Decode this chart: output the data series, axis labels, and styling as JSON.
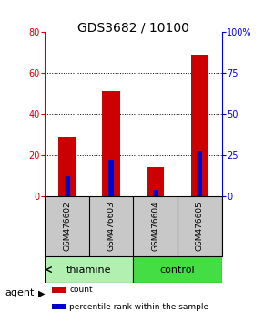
{
  "title": "GDS3682 / 10100",
  "samples": [
    "GSM476602",
    "GSM476603",
    "GSM476604",
    "GSM476605"
  ],
  "count_values": [
    29,
    51,
    14,
    69
  ],
  "percentile_values": [
    12,
    22,
    4,
    27
  ],
  "ylim_left": [
    0,
    80
  ],
  "ylim_right": [
    0,
    100
  ],
  "yticks_left": [
    0,
    20,
    40,
    60,
    80
  ],
  "yticks_right": [
    0,
    25,
    50,
    75,
    100
  ],
  "yticklabels_right": [
    "0",
    "25",
    "50",
    "75",
    "100%"
  ],
  "bar_color_red": "#cc0000",
  "bar_color_blue": "#0000cc",
  "bar_width": 0.4,
  "blue_bar_width": 0.12,
  "agent_label": "agent",
  "groups": [
    {
      "label": "thiamine",
      "samples": [
        0,
        1
      ],
      "color": "#b2f0b2"
    },
    {
      "label": "control",
      "samples": [
        2,
        3
      ],
      "color": "#44dd44"
    }
  ],
  "legend_items": [
    {
      "color": "#cc0000",
      "label": "count"
    },
    {
      "color": "#0000cc",
      "label": "percentile rank within the sample"
    }
  ],
  "tick_color_left": "#cc0000",
  "tick_color_right": "#0000cc",
  "background_color": "#ffffff",
  "label_area_color": "#c8c8c8",
  "grid_color": "#000000",
  "title_fontsize": 10,
  "tick_fontsize": 7,
  "sample_fontsize": 6.5,
  "group_fontsize": 8,
  "legend_fontsize": 6.5,
  "agent_fontsize": 8
}
